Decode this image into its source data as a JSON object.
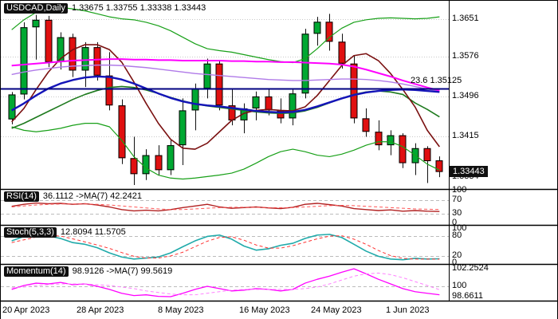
{
  "header": {
    "symbol": "USDCAD,Daily",
    "ohlc": "1.33675 1.33755 1.33338 1.33443"
  },
  "price_badge": "1.33443",
  "fib_label": "23.6 1.35125",
  "pane_labels": {
    "rsi": {
      "name": "RSI(14)",
      "values": "36.1112 ->MA(7) 42.2421"
    },
    "stoch": {
      "name": "Stoch(5,3,3)",
      "values": "12.8094 11.5705"
    },
    "momentum": {
      "name": "Momentum(14)",
      "values": "98.9126 ->MA(7) 99.5619"
    }
  },
  "axis": {
    "main": [
      "1.3651",
      "1.3576",
      "1.3496",
      "1.3415",
      "1.3334"
    ],
    "rsi": [
      "100",
      "70",
      "30",
      "0"
    ],
    "stoch": [
      "100",
      "80",
      "20",
      "0"
    ],
    "momentum": [
      "102.2524",
      "100",
      "98.6611"
    ]
  },
  "dates": [
    "20 Apr 2023",
    "28 Apr 2023",
    "8 May 2023",
    "16 May 2023",
    "24 May 2023",
    "1 Jun 2023"
  ],
  "colors": {
    "up": "#00A832",
    "down": "#E01010",
    "wick": "#111111",
    "ma_magenta": "#FF00FF",
    "ma_blue": "#1414B8",
    "ma_maroon": "#7A1010",
    "ma_green": "#1E7A1E",
    "ma_violet": "#B07AE8",
    "band": "#18A018",
    "fib": "#000080",
    "rsi": "#B22222",
    "rsi_ma": "#FF5555",
    "stoch": "#20AAAA",
    "stoch_signal": "#FF3333",
    "momentum": "#FF00FF",
    "momentum_ma": "#FF80FF",
    "grid": "#C8C8C8",
    "level": "#BBBBBB",
    "separator": "#000000",
    "badge_bg": "#101010",
    "badge_fg": "#FFFFFF"
  },
  "chart_data": {
    "type": "candlestick",
    "title": "USDCAD Daily with MAs, Bollinger-style bands, 23.6 fib level, RSI(14), Stoch(5,3,3), Momentum(14)",
    "symbol": "USDCAD",
    "timeframe": "Daily",
    "current": {
      "open": 1.33675,
      "high": 1.33755,
      "low": 1.33338,
      "close": 1.33443
    },
    "grid_prices": [
      1.3651,
      1.3576,
      1.3496,
      1.3415
    ],
    "fib": {
      "label": "23.6",
      "value": 1.35125
    },
    "ylim_main": [
      1.331,
      1.3685
    ],
    "candles": [
      [
        "20 Apr",
        1.345,
        1.3505,
        1.344,
        1.35
      ],
      [
        "21 Apr",
        1.35,
        1.3645,
        1.349,
        1.3635
      ],
      [
        "24 Apr",
        1.3635,
        1.366,
        1.357,
        1.365
      ],
      [
        "25 Apr",
        1.365,
        1.3658,
        1.3555,
        1.3565
      ],
      [
        "26 Apr",
        1.3565,
        1.3625,
        1.355,
        1.3615
      ],
      [
        "27 Apr",
        1.3615,
        1.3622,
        1.3535,
        1.3548
      ],
      [
        "28 Apr",
        1.3548,
        1.3605,
        1.3515,
        1.3595
      ],
      [
        "1 May",
        1.3595,
        1.3605,
        1.3528,
        1.3538
      ],
      [
        "2 May",
        1.3538,
        1.3585,
        1.3468,
        1.3478
      ],
      [
        "3 May",
        1.3478,
        1.349,
        1.336,
        1.3372
      ],
      [
        "4 May",
        1.3372,
        1.3415,
        1.3318,
        1.334
      ],
      [
        "5 May",
        1.334,
        1.339,
        1.3328,
        1.3378
      ],
      [
        "8 May",
        1.3378,
        1.3398,
        1.3338,
        1.3348
      ],
      [
        "9 May",
        1.3348,
        1.3408,
        1.3338,
        1.3398
      ],
      [
        "10 May",
        1.3398,
        1.3492,
        1.3358,
        1.3468
      ],
      [
        "11 May",
        1.3468,
        1.3522,
        1.3428,
        1.3512
      ],
      [
        "12 May",
        1.3512,
        1.3572,
        1.3492,
        1.3562
      ],
      [
        "15 May",
        1.3562,
        1.3568,
        1.3468,
        1.3478
      ],
      [
        "16 May",
        1.3478,
        1.3512,
        1.3438,
        1.3448
      ],
      [
        "17 May",
        1.3448,
        1.3482,
        1.3422,
        1.3472
      ],
      [
        "18 May",
        1.3472,
        1.3506,
        1.3448,
        1.3496
      ],
      [
        "19 May",
        1.3496,
        1.3512,
        1.3458,
        1.3468
      ],
      [
        "22 May",
        1.3468,
        1.3492,
        1.3442,
        1.3452
      ],
      [
        "23 May",
        1.3452,
        1.3512,
        1.3438,
        1.3502
      ],
      [
        "24 May",
        1.3502,
        1.3632,
        1.3492,
        1.3622
      ],
      [
        "25 May",
        1.3622,
        1.3656,
        1.3598,
        1.3646
      ],
      [
        "26 May",
        1.3646,
        1.3662,
        1.3588,
        1.3606
      ],
      [
        "29 May",
        1.3606,
        1.3622,
        1.3552,
        1.3562
      ],
      [
        "30 May",
        1.3562,
        1.3578,
        1.3442,
        1.3452
      ],
      [
        "31 May",
        1.3452,
        1.3472,
        1.3415,
        1.3425
      ],
      [
        "1 Jun",
        1.3425,
        1.3448,
        1.3388,
        1.3398
      ],
      [
        "2 Jun",
        1.3398,
        1.3428,
        1.3378,
        1.3418
      ],
      [
        "5 Jun",
        1.3418,
        1.3422,
        1.3352,
        1.3362
      ],
      [
        "6 Jun",
        1.3362,
        1.3402,
        1.3338,
        1.3392
      ],
      [
        "7 Jun",
        1.3392,
        1.3396,
        1.3322,
        1.3366
      ],
      [
        "8 Jun",
        1.33675,
        1.33755,
        1.33338,
        1.33443
      ]
    ],
    "overlays": [
      {
        "name": "band_upper",
        "color": "#18A018",
        "width": 1.2,
        "values": [
          1.363,
          1.365,
          1.3665,
          1.3672,
          1.3675,
          1.3672,
          1.3668,
          1.3662,
          1.3656,
          1.3652,
          1.365,
          1.3645,
          1.3638,
          1.3628,
          1.3615,
          1.3602,
          1.3592,
          1.3588,
          1.3585,
          1.358,
          1.3575,
          1.357,
          1.3566,
          1.3564,
          1.3572,
          1.3592,
          1.3615,
          1.3633,
          1.3645,
          1.365,
          1.3653,
          1.3654,
          1.3653,
          1.3652,
          1.3653,
          1.3656
        ]
      },
      {
        "name": "band_lower",
        "color": "#18A018",
        "width": 1.2,
        "values": [
          1.3435,
          1.3428,
          1.3425,
          1.3428,
          1.3432,
          1.3438,
          1.3442,
          1.3442,
          1.3435,
          1.3408,
          1.3375,
          1.3352,
          1.3338,
          1.3332,
          1.333,
          1.3332,
          1.3335,
          1.3338,
          1.3342,
          1.335,
          1.3362,
          1.3375,
          1.3385,
          1.339,
          1.3385,
          1.3378,
          1.3375,
          1.338,
          1.3388,
          1.3398,
          1.3405,
          1.3405,
          1.3395,
          1.3378,
          1.336,
          1.3348
        ]
      },
      {
        "name": "ma_green",
        "color": "#1E7A1E",
        "width": 1.6,
        "values": [
          1.3432,
          1.3442,
          1.3454,
          1.3466,
          1.3478,
          1.349,
          1.35,
          1.3508,
          1.3514,
          1.3516,
          1.3514,
          1.3509,
          1.3502,
          1.3494,
          1.3487,
          1.3481,
          1.3477,
          1.3474,
          1.3471,
          1.3468,
          1.3465,
          1.3463,
          1.3462,
          1.3463,
          1.3467,
          1.3474,
          1.3483,
          1.3492,
          1.35,
          1.3505,
          1.3507,
          1.3505,
          1.35,
          1.3483,
          1.347,
          1.3455
        ]
      },
      {
        "name": "ma_maroon",
        "color": "#7A1010",
        "width": 1.6,
        "values": [
          1.3445,
          1.3472,
          1.351,
          1.3545,
          1.3572,
          1.359,
          1.36,
          1.36,
          1.359,
          1.3565,
          1.3525,
          1.3482,
          1.3442,
          1.341,
          1.3392,
          1.339,
          1.3402,
          1.3425,
          1.3448,
          1.3462,
          1.3468,
          1.347,
          1.3468,
          1.3467,
          1.3475,
          1.3498,
          1.3528,
          1.3558,
          1.3578,
          1.3582,
          1.3568,
          1.3542,
          1.351,
          1.3475,
          1.3428,
          1.3395
        ]
      },
      {
        "name": "ma_violet",
        "color": "#B07AE8",
        "width": 1.4,
        "values": [
          1.354,
          1.3545,
          1.3549,
          1.3552,
          1.3555,
          1.3557,
          1.3558,
          1.3559,
          1.3559,
          1.3558,
          1.3556,
          1.3554,
          1.3551,
          1.3548,
          1.3545,
          1.3542,
          1.354,
          1.3538,
          1.3536,
          1.3534,
          1.3532,
          1.353,
          1.3529,
          1.3528,
          1.3528,
          1.3529,
          1.353,
          1.3531,
          1.3531,
          1.353,
          1.3528,
          1.3525,
          1.3521,
          1.3516,
          1.3511,
          1.3506
        ]
      },
      {
        "name": "ma_blue",
        "color": "#1414B8",
        "width": 2.4,
        "values": [
          1.3468,
          1.3482,
          1.3498,
          1.3512,
          1.3522,
          1.3529,
          1.3534,
          1.3536,
          1.3535,
          1.353,
          1.3522,
          1.3512,
          1.3502,
          1.3493,
          1.3486,
          1.3481,
          1.3478,
          1.3476,
          1.3473,
          1.347,
          1.3467,
          1.3465,
          1.3464,
          1.3465,
          1.3469,
          1.3476,
          1.3484,
          1.3492,
          1.3499,
          1.3504,
          1.3507,
          1.3509,
          1.351,
          1.3509,
          1.3507,
          1.3505
        ]
      },
      {
        "name": "ma_magenta",
        "color": "#FF00FF",
        "width": 2.0,
        "values": [
          1.3558,
          1.356,
          1.3562,
          1.3564,
          1.3566,
          1.3568,
          1.3569,
          1.357,
          1.3571,
          1.3571,
          1.357,
          1.357,
          1.3569,
          1.3569,
          1.3568,
          1.3568,
          1.3568,
          1.3568,
          1.3567,
          1.3567,
          1.3566,
          1.3566,
          1.3565,
          1.3565,
          1.3564,
          1.3563,
          1.3562,
          1.356,
          1.3556,
          1.355,
          1.3543,
          1.3536,
          1.3528,
          1.3521,
          1.3514,
          1.3508
        ]
      }
    ],
    "rsi": {
      "params": "RSI(14), MA(7)",
      "value": 36.1112,
      "ma": 42.2421,
      "range": [
        0,
        100
      ],
      "levels": [
        70,
        30
      ],
      "main": [
        52,
        58,
        62,
        60,
        61,
        58,
        60,
        56,
        50,
        42,
        38,
        40,
        38,
        42,
        48,
        53,
        58,
        50,
        46,
        48,
        50,
        47,
        45,
        49,
        58,
        61,
        57,
        53,
        45,
        42,
        39,
        41,
        37,
        39,
        37,
        36.11
      ],
      "signal": [
        50,
        53,
        56,
        58,
        59,
        59,
        59,
        58,
        56,
        53,
        50,
        47,
        44,
        42,
        42,
        44,
        46,
        48,
        49,
        49,
        49,
        48,
        48,
        48,
        50,
        52,
        54,
        55,
        54,
        52,
        50,
        48,
        46,
        44,
        43,
        42.24
      ]
    },
    "stoch": {
      "params": "Stoch(5,3,3)",
      "value": 12.8094,
      "signal_value": 11.5705,
      "range": [
        0,
        100
      ],
      "levels": [
        80,
        20
      ],
      "main": [
        65,
        78,
        85,
        80,
        72,
        60,
        55,
        45,
        30,
        18,
        12,
        15,
        18,
        30,
        48,
        65,
        78,
        82,
        70,
        50,
        38,
        42,
        52,
        58,
        72,
        82,
        84,
        75,
        55,
        35,
        20,
        12,
        10,
        14,
        12,
        12.81
      ],
      "signal": [
        60,
        68,
        76,
        81,
        79,
        71,
        62,
        53,
        43,
        31,
        20,
        15,
        15,
        21,
        32,
        48,
        64,
        75,
        77,
        67,
        53,
        44,
        44,
        51,
        61,
        71,
        79,
        80,
        70,
        55,
        37,
        22,
        14,
        12,
        12,
        11.57
      ]
    },
    "momentum": {
      "params": "Momentum(14), MA(7)",
      "value": 98.9126,
      "ma": 99.5619,
      "range": [
        98.6611,
        102.2524
      ],
      "levels": [
        100
      ],
      "main": [
        99.6,
        100.1,
        100.4,
        100.3,
        100.5,
        100.2,
        100.3,
        100.0,
        99.6,
        99.1,
        98.8,
        98.9,
        98.7,
        98.66,
        99.1,
        99.6,
        100.0,
        99.7,
        99.4,
        99.5,
        99.7,
        99.6,
        99.4,
        99.6,
        100.4,
        100.9,
        101.3,
        101.8,
        102.25,
        101.6,
        100.9,
        100.3,
        99.7,
        99.3,
        99.1,
        98.91
      ],
      "signal": [
        99.8,
        99.9,
        100.1,
        100.2,
        100.3,
        100.3,
        100.3,
        100.2,
        100.1,
        99.9,
        99.7,
        99.4,
        99.2,
        99.0,
        98.9,
        98.9,
        99.1,
        99.3,
        99.5,
        99.6,
        99.6,
        99.6,
        99.6,
        99.6,
        99.7,
        99.9,
        100.3,
        100.8,
        101.3,
        101.6,
        101.7,
        101.5,
        101.1,
        100.6,
        100.1,
        99.56
      ]
    }
  }
}
